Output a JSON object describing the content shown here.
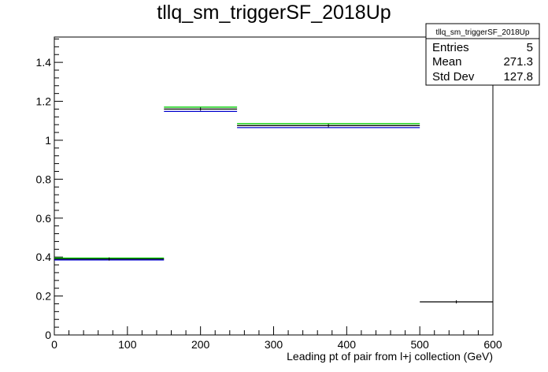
{
  "chart_data": {
    "type": "histogram",
    "title": "tllq_sm_triggerSF_2018Up",
    "xlabel": "Leading pt of pair from l+j collection (GeV)",
    "ylabel": "",
    "xlim": [
      0,
      600
    ],
    "ylim": [
      0,
      1.53
    ],
    "x_ticks": [
      0,
      100,
      200,
      300,
      400,
      500,
      600
    ],
    "y_ticks": [
      0,
      0.2,
      0.4,
      0.6,
      0.8,
      1,
      1.2,
      1.4
    ],
    "x_tick_labels": [
      "0",
      "100",
      "200",
      "300",
      "400",
      "500",
      "600"
    ],
    "y_tick_labels": [
      "0",
      "0.2",
      "0.4",
      "0.6",
      "0.8",
      "1",
      "1.2",
      "1.4"
    ],
    "grid": false,
    "bins": [
      {
        "xlow": 0,
        "xhigh": 150,
        "value": 0.39
      },
      {
        "xlow": 150,
        "xhigh": 250,
        "value": 1.16
      },
      {
        "xlow": 250,
        "xhigh": 500,
        "value": 1.075
      },
      {
        "xlow": 500,
        "xhigh": 600,
        "value": 0.17
      }
    ],
    "series": [
      {
        "color": "#00cc00",
        "values": [
          0.395,
          1.17,
          1.085,
          null
        ]
      },
      {
        "color": "#000000",
        "values": [
          0.39,
          1.16,
          1.075,
          0.17
        ]
      },
      {
        "color": "#0000cc",
        "values": [
          0.385,
          1.148,
          1.065,
          null
        ]
      }
    ],
    "stats_box": {
      "name": "tllq_sm_triggerSF_2018Up",
      "placement": "top-right",
      "rows": [
        {
          "label": "Entries",
          "value": "5"
        },
        {
          "label": "Mean",
          "value": "271.3"
        },
        {
          "label": "Std Dev",
          "value": "127.8"
        }
      ]
    }
  }
}
